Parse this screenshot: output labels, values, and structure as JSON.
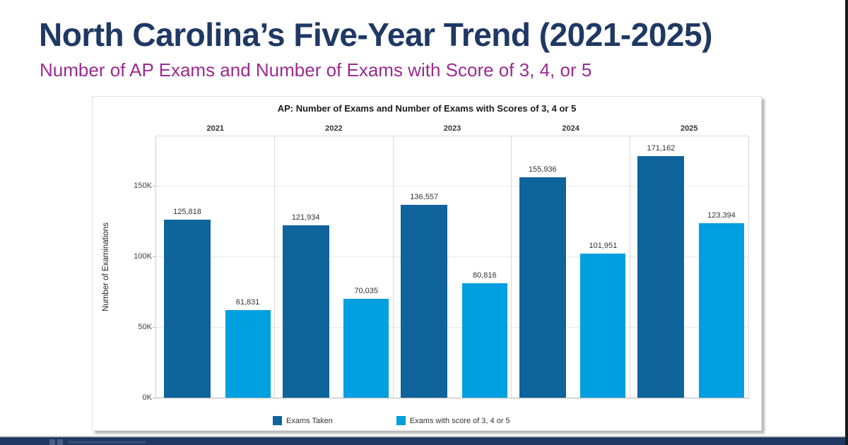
{
  "header": {
    "title": "North Carolina’s Five-Year Trend (2021-2025)",
    "subtitle": "Number of AP Exams and Number of Exams with Score of 3, 4, or 5",
    "title_color": "#1F3864",
    "subtitle_color": "#9C2B91"
  },
  "chart_data": {
    "type": "bar",
    "title": "AP: Number of Exams and Number of Exams with Scores of 3, 4 or 5",
    "categories": [
      "2021",
      "2022",
      "2023",
      "2024",
      "2025"
    ],
    "series": [
      {
        "name": "Exams Taken",
        "color": "#0F649C",
        "values": [
          125818,
          121934,
          136557,
          155936,
          171162
        ],
        "labels": [
          "125,818",
          "121,934",
          "136,557",
          "155,936",
          "171,162"
        ]
      },
      {
        "name": "Exams with score of 3, 4 or 5",
        "color": "#009FE0",
        "values": [
          61831,
          70035,
          80816,
          101951,
          123394
        ],
        "labels": [
          "61,831",
          "70,035",
          "80,816",
          "101,951",
          "123,394"
        ]
      }
    ],
    "xlabel": "",
    "ylabel": "Number of Examinations",
    "ylim": [
      0,
      185000
    ],
    "yticks": [
      {
        "value": 0,
        "label": "0K"
      },
      {
        "value": 50000,
        "label": "50K"
      },
      {
        "value": 100000,
        "label": "100K"
      },
      {
        "value": 150000,
        "label": "150K"
      }
    ],
    "grid": true,
    "legend_position": "bottom"
  },
  "footer": {
    "bar_color": "#1F3864"
  }
}
